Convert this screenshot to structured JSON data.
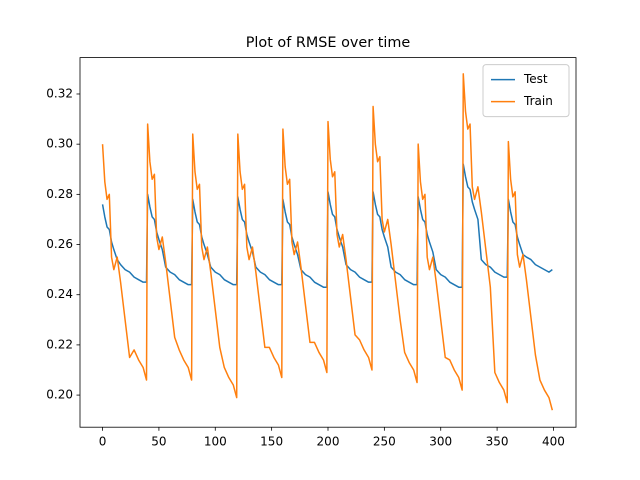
{
  "chart_data": {
    "type": "line",
    "title": "Plot of RMSE over time",
    "x": [
      0,
      2,
      4,
      6,
      8,
      10,
      13,
      16,
      20,
      24,
      28,
      32,
      36,
      39,
      40,
      42,
      44,
      46,
      48,
      50,
      53,
      56,
      60,
      64,
      68,
      72,
      76,
      79,
      80,
      82,
      84,
      86,
      88,
      90,
      93,
      96,
      100,
      104,
      108,
      112,
      116,
      119,
      120,
      122,
      124,
      126,
      128,
      130,
      133,
      136,
      140,
      144,
      148,
      152,
      156,
      159,
      160,
      162,
      164,
      166,
      168,
      170,
      173,
      176,
      180,
      184,
      188,
      192,
      196,
      199,
      200,
      202,
      204,
      206,
      208,
      210,
      213,
      216,
      220,
      224,
      228,
      232,
      236,
      239,
      240,
      242,
      244,
      246,
      248,
      250,
      253,
      256,
      260,
      264,
      268,
      272,
      276,
      279,
      280,
      282,
      284,
      286,
      288,
      290,
      293,
      296,
      300,
      304,
      308,
      312,
      316,
      319,
      320,
      322,
      324,
      326,
      328,
      330,
      333,
      336,
      340,
      344,
      348,
      352,
      356,
      359,
      360,
      362,
      364,
      366,
      368,
      370,
      373,
      376,
      380,
      384,
      388,
      392,
      396,
      399
    ],
    "series": [
      {
        "name": "Test",
        "color": "#1f77b4",
        "values": [
          0.276,
          0.271,
          0.267,
          0.266,
          0.261,
          0.258,
          0.254,
          0.252,
          0.25,
          0.249,
          0.247,
          0.246,
          0.245,
          0.245,
          0.28,
          0.275,
          0.271,
          0.27,
          0.265,
          0.262,
          0.258,
          0.251,
          0.249,
          0.248,
          0.246,
          0.245,
          0.244,
          0.244,
          0.278,
          0.273,
          0.269,
          0.268,
          0.263,
          0.26,
          0.256,
          0.251,
          0.249,
          0.248,
          0.246,
          0.245,
          0.244,
          0.244,
          0.279,
          0.274,
          0.27,
          0.269,
          0.264,
          0.261,
          0.257,
          0.251,
          0.249,
          0.248,
          0.246,
          0.245,
          0.244,
          0.244,
          0.278,
          0.273,
          0.269,
          0.268,
          0.263,
          0.26,
          0.256,
          0.25,
          0.248,
          0.247,
          0.245,
          0.244,
          0.243,
          0.243,
          0.281,
          0.276,
          0.272,
          0.271,
          0.266,
          0.263,
          0.259,
          0.252,
          0.25,
          0.249,
          0.247,
          0.246,
          0.245,
          0.245,
          0.281,
          0.276,
          0.272,
          0.271,
          0.266,
          0.263,
          0.259,
          0.251,
          0.249,
          0.248,
          0.246,
          0.245,
          0.244,
          0.244,
          0.279,
          0.274,
          0.27,
          0.269,
          0.264,
          0.261,
          0.257,
          0.25,
          0.248,
          0.247,
          0.245,
          0.244,
          0.243,
          0.243,
          0.292,
          0.287,
          0.283,
          0.282,
          0.277,
          0.274,
          0.27,
          0.254,
          0.252,
          0.251,
          0.249,
          0.248,
          0.247,
          0.247,
          0.278,
          0.273,
          0.269,
          0.268,
          0.263,
          0.26,
          0.256,
          0.255,
          0.254,
          0.252,
          0.251,
          0.25,
          0.249,
          0.25
        ]
      },
      {
        "name": "Train",
        "color": "#ff7f0e",
        "values": [
          0.3,
          0.285,
          0.278,
          0.28,
          0.255,
          0.25,
          0.255,
          0.245,
          0.23,
          0.215,
          0.218,
          0.214,
          0.211,
          0.206,
          0.308,
          0.293,
          0.286,
          0.288,
          0.263,
          0.258,
          0.263,
          0.253,
          0.238,
          0.223,
          0.218,
          0.214,
          0.211,
          0.206,
          0.304,
          0.289,
          0.282,
          0.284,
          0.259,
          0.254,
          0.259,
          0.249,
          0.234,
          0.219,
          0.211,
          0.207,
          0.204,
          0.199,
          0.304,
          0.289,
          0.282,
          0.284,
          0.259,
          0.254,
          0.259,
          0.249,
          0.234,
          0.219,
          0.219,
          0.215,
          0.212,
          0.207,
          0.306,
          0.291,
          0.284,
          0.286,
          0.261,
          0.256,
          0.261,
          0.251,
          0.236,
          0.221,
          0.221,
          0.217,
          0.214,
          0.209,
          0.309,
          0.294,
          0.287,
          0.289,
          0.264,
          0.259,
          0.264,
          0.254,
          0.239,
          0.224,
          0.222,
          0.218,
          0.215,
          0.21,
          0.315,
          0.3,
          0.293,
          0.295,
          0.27,
          0.265,
          0.27,
          0.26,
          0.245,
          0.23,
          0.217,
          0.213,
          0.21,
          0.205,
          0.3,
          0.285,
          0.278,
          0.28,
          0.255,
          0.25,
          0.255,
          0.245,
          0.23,
          0.215,
          0.214,
          0.21,
          0.207,
          0.202,
          0.328,
          0.313,
          0.306,
          0.308,
          0.283,
          0.278,
          0.283,
          0.273,
          0.258,
          0.243,
          0.209,
          0.205,
          0.202,
          0.197,
          0.301,
          0.286,
          0.279,
          0.281,
          0.256,
          0.251,
          0.256,
          0.246,
          0.231,
          0.216,
          0.206,
          0.202,
          0.199,
          0.194
        ]
      }
    ],
    "xlim": [
      -20,
      420
    ],
    "xticks": [
      0,
      50,
      100,
      150,
      200,
      250,
      300,
      350,
      400
    ],
    "ylim": [
      0.1872,
      0.3345
    ],
    "yticks": [
      {
        "value": 0.2,
        "label": "0.20"
      },
      0.22,
      0.24,
      0.26,
      0.28,
      {
        "value": 0.3,
        "label": "0.30"
      },
      0.32
    ],
    "grid": false,
    "legend": "upper right"
  }
}
